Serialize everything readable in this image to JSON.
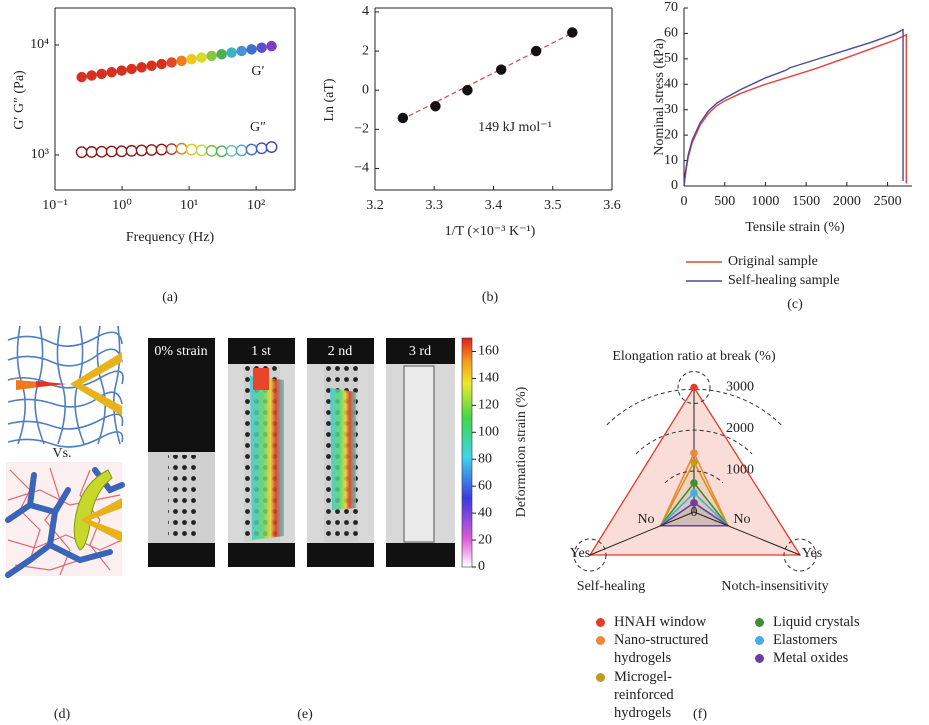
{
  "chart_data": [
    {
      "type": "scatter",
      "xlabel": "Frequency (Hz)",
      "ylabel": "G′ G″ (Pa)",
      "xscale": "log",
      "yscale": "log",
      "frame": "box",
      "xlim": [
        0.1,
        380
      ],
      "ylim": [
        480,
        21700
      ],
      "xticks": [
        {
          "value": 0.1,
          "label": "10⁻¹"
        },
        {
          "value": 1,
          "label": "10⁰"
        },
        {
          "value": 10,
          "label": "10¹"
        },
        {
          "value": 100,
          "label": "10²"
        }
      ],
      "yticks": [
        {
          "value": 1000,
          "label": "10³"
        },
        {
          "value": 10000,
          "label": "10⁴"
        }
      ],
      "annotations": [
        "G′",
        "G″"
      ],
      "series": [
        {
          "marker": "filled",
          "x": [
            0.25,
            0.352,
            0.497,
            0.7,
            0.987,
            1.39,
            1.96,
            2.76,
            3.89,
            5.49,
            7.74,
            10.9,
            15.4,
            21.7,
            30.6,
            43.1,
            60.7,
            85.6,
            121,
            170
          ],
          "values": [
            5100,
            5280,
            5460,
            5650,
            5850,
            6050,
            6260,
            6480,
            6710,
            6940,
            7180,
            7430,
            7690,
            7960,
            8240,
            8530,
            8820,
            9130,
            9450,
            9780
          ],
          "colors": [
            "#d7301f",
            "#d7301f",
            "#d7301f",
            "#d7301f",
            "#d7301f",
            "#d7301f",
            "#d7301f",
            "#d7301f",
            "#d7301f",
            "#e8452a",
            "#f07d1a",
            "#f5c518",
            "#d4dc2a",
            "#8cc63f",
            "#4caf50",
            "#3cb3c0",
            "#4a90d9",
            "#3f6fd1",
            "#5a4fcf",
            "#7b3fc4"
          ]
        },
        {
          "marker": "open",
          "x": [
            0.25,
            0.352,
            0.497,
            0.7,
            0.987,
            1.39,
            1.96,
            2.76,
            3.89,
            5.49,
            7.74,
            10.9,
            15.4,
            21.7,
            30.6,
            43.1,
            60.7,
            85.6,
            121,
            170
          ],
          "values": [
            1060,
            1065,
            1070,
            1075,
            1080,
            1090,
            1100,
            1110,
            1120,
            1130,
            1140,
            1120,
            1100,
            1090,
            1080,
            1090,
            1100,
            1120,
            1150,
            1180
          ],
          "colors": [
            "#8b1a1a",
            "#8b1a1a",
            "#8b1a1a",
            "#8b1a1a",
            "#8b1a1a",
            "#8b1a1a",
            "#8b1a1a",
            "#8b1a1a",
            "#8b1a1a",
            "#b03a2a",
            "#d9822b",
            "#e6c619",
            "#c9d63a",
            "#7bbf4a",
            "#4caf50",
            "#6cc0b0",
            "#5a9fd9",
            "#3f6fd1",
            "#4a4fc0",
            "#3b4aa8"
          ]
        }
      ]
    },
    {
      "type": "scatter",
      "xlabel": "1/T (×10⁻³ K⁻¹)",
      "ylabel": "Ln (aT)",
      "frame": "box",
      "xlim": [
        3.2,
        3.6
      ],
      "ylim": [
        -5.1,
        4.2
      ],
      "xticks": [
        3.2,
        3.3,
        3.4,
        3.5,
        3.6
      ],
      "yticks": [
        {
          "value": -4,
          "label": "−4"
        },
        {
          "value": -2,
          "label": "−2"
        },
        0,
        2,
        4
      ],
      "annotations": [
        "149 kJ mol⁻¹"
      ],
      "fit": {
        "x": [
          3.245,
          3.535
        ],
        "y": [
          -1.5,
          2.95
        ],
        "color": "#d9534f"
      },
      "series": [
        {
          "marker": "filled",
          "color": "#111111",
          "x": [
            3.247,
            3.302,
            3.356,
            3.413,
            3.472,
            3.533
          ],
          "values": [
            -1.42,
            -0.82,
            0.0,
            1.05,
            2.0,
            2.95
          ]
        }
      ]
    },
    {
      "type": "line",
      "xlabel": "Tensile strain (%)",
      "ylabel": "Nominal stress (kPa)",
      "frame": "axes",
      "xlim": [
        0,
        2800
      ],
      "ylim": [
        0,
        70
      ],
      "xticks": [
        0,
        500,
        1000,
        1500,
        2000,
        2500
      ],
      "yticks": [
        0,
        10,
        20,
        30,
        40,
        50,
        60,
        70
      ],
      "series": [
        {
          "name": "Original sample",
          "color": "#e0463c",
          "x": [
            0,
            20,
            50,
            100,
            200,
            300,
            400,
            500,
            700,
            1000,
            1300,
            1600,
            2000,
            2300,
            2600,
            2730,
            2730
          ],
          "values": [
            0,
            5,
            11,
            17,
            24,
            28.5,
            31.5,
            33.5,
            36.5,
            40,
            43,
            46,
            50.5,
            54,
            57.5,
            59.5,
            1
          ]
        },
        {
          "name": "Self-healing sample",
          "color": "#4a4aa0",
          "x": [
            0,
            20,
            50,
            100,
            200,
            300,
            400,
            500,
            700,
            1000,
            1250,
            1300,
            1350,
            1600,
            2000,
            2300,
            2600,
            2690,
            2690
          ],
          "values": [
            0,
            6,
            12,
            18,
            25,
            29.5,
            32.5,
            34.5,
            38,
            42.5,
            45.5,
            46.5,
            47,
            49.5,
            53.5,
            56.5,
            60,
            61.5,
            2
          ]
        }
      ]
    },
    {
      "type": "radar",
      "axes": [
        {
          "label": "Elongation ratio at break (%)",
          "lim": [
            0,
            3000
          ],
          "ticks": [
            0,
            1000,
            2000,
            3000
          ]
        },
        {
          "label": "Self-healing",
          "categories": [
            "No",
            "Yes"
          ]
        },
        {
          "label": "Notch-insensitivity",
          "categories": [
            "No",
            "Yes"
          ]
        }
      ],
      "series": [
        {
          "name": "HNAH window",
          "color": "#e23c2c",
          "values": [
            3000,
            "Yes",
            "Yes"
          ]
        },
        {
          "name": "Nano-structured hydrogels",
          "color": "#f0883a",
          "values": [
            1420,
            "No",
            "No"
          ]
        },
        {
          "name": "Microgel-reinforced hydrogels",
          "color": "#c49a1c",
          "values": [
            1200,
            "No",
            "No"
          ]
        },
        {
          "name": "Liquid crystals",
          "color": "#3f8f3a",
          "values": [
            700,
            "No",
            "No"
          ]
        },
        {
          "name": "Elastomers",
          "color": "#3fb0e0",
          "values": [
            460,
            "No",
            "No"
          ]
        },
        {
          "name": "Metal oxides",
          "color": "#6a3fa0",
          "values": [
            220,
            "No",
            "No"
          ]
        }
      ]
    }
  ],
  "panel_labels": [
    "(a)",
    "(b)",
    "(c)",
    "(d)",
    "(e)",
    "(f)"
  ],
  "panel_d": {
    "text": "Vs."
  },
  "panel_e": {
    "frames": [
      "0% strain",
      "1 st",
      "2 nd",
      "3 rd"
    ],
    "colorbar": {
      "label": "Deformation strain (%)",
      "lim": [
        0,
        170
      ],
      "ticks": [
        0,
        20,
        40,
        60,
        80,
        100,
        120,
        140,
        160
      ]
    }
  }
}
